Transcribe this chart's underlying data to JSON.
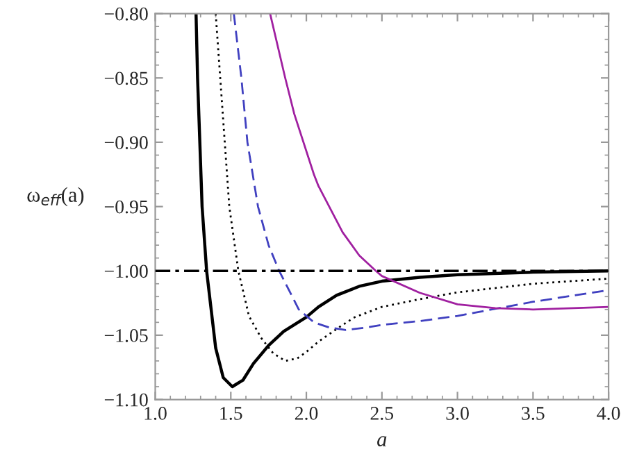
{
  "chart_data": {
    "type": "line",
    "xlabel": "a",
    "ylabel": "ω$_{eff}$(a)",
    "xlim": [
      1.0,
      4.0
    ],
    "ylim": [
      -1.1,
      -0.8
    ],
    "xticks": [
      {
        "value": 1.0,
        "label": "1.0"
      },
      {
        "value": 1.5,
        "label": "1.5"
      },
      {
        "value": 2.0,
        "label": "2.0"
      },
      {
        "value": 2.5,
        "label": "2.5"
      },
      {
        "value": 3.0,
        "label": "3.0"
      },
      {
        "value": 3.5,
        "label": "3.5"
      },
      {
        "value": 4.0,
        "label": "4.0"
      }
    ],
    "yticks": [
      {
        "value": -1.1,
        "label": "−1.10"
      },
      {
        "value": -1.05,
        "label": "−1.05"
      },
      {
        "value": -1.0,
        "label": "−1.00"
      },
      {
        "value": -0.95,
        "label": "−0.95"
      },
      {
        "value": -0.9,
        "label": "−0.90"
      },
      {
        "value": -0.85,
        "label": "−0.85"
      },
      {
        "value": -0.8,
        "label": "−0.80"
      }
    ],
    "grid": false,
    "marker": "none",
    "ref_lines": [
      {
        "axis": "y",
        "value": -1.0,
        "color": "#000000",
        "line_style": "dashdot"
      }
    ],
    "series": [
      {
        "color": "#000000",
        "line_style": "solid",
        "x": [
          1.27,
          1.28,
          1.31,
          1.34,
          1.4,
          1.45,
          1.51,
          1.58,
          1.65,
          1.75,
          1.85,
          2.0,
          2.08,
          2.2,
          2.35,
          2.5,
          2.75,
          3.0,
          3.5,
          4.0
        ],
        "values": [
          -0.8,
          -0.85,
          -0.95,
          -1.0,
          -1.06,
          -1.083,
          -1.09,
          -1.085,
          -1.072,
          -1.058,
          -1.047,
          -1.036,
          -1.028,
          -1.019,
          -1.012,
          -1.008,
          -1.005,
          -1.003,
          -1.001,
          -1.0
        ]
      },
      {
        "color": "#000000",
        "line_style": "dotted",
        "x": [
          1.4,
          1.43,
          1.49,
          1.55,
          1.62,
          1.7,
          1.78,
          1.86,
          1.94,
          2.0,
          2.08,
          2.24,
          2.32,
          2.5,
          2.75,
          3.0,
          3.5,
          4.0
        ],
        "values": [
          -0.8,
          -0.85,
          -0.95,
          -1.0,
          -1.035,
          -1.052,
          -1.064,
          -1.07,
          -1.068,
          -1.063,
          -1.055,
          -1.042,
          -1.036,
          -1.028,
          -1.022,
          -1.0167,
          -1.01,
          -1.006
        ]
      },
      {
        "color": "#4040c0",
        "line_style": "dashed",
        "x": [
          1.52,
          1.57,
          1.61,
          1.68,
          1.75,
          1.82,
          1.95,
          2.05,
          2.15,
          2.26,
          2.4,
          2.5,
          2.75,
          3.0,
          3.5,
          4.0
        ],
        "values": [
          -0.8,
          -0.85,
          -0.9,
          -0.95,
          -0.98,
          -1.0,
          -1.03,
          -1.04,
          -1.044,
          -1.046,
          -1.044,
          -1.042,
          -1.039,
          -1.035,
          -1.024,
          -1.015
        ]
      },
      {
        "color": "#a020a0",
        "line_style": "solid",
        "x": [
          1.76,
          1.86,
          1.92,
          2.05,
          2.08,
          2.24,
          2.35,
          2.46,
          2.5,
          2.75,
          3.0,
          3.25,
          3.5,
          4.0
        ],
        "values": [
          -0.8,
          -0.85,
          -0.878,
          -0.925,
          -0.934,
          -0.97,
          -0.988,
          -1.0,
          -1.004,
          -1.017,
          -1.026,
          -1.029,
          -1.03,
          -1.028
        ]
      }
    ]
  }
}
